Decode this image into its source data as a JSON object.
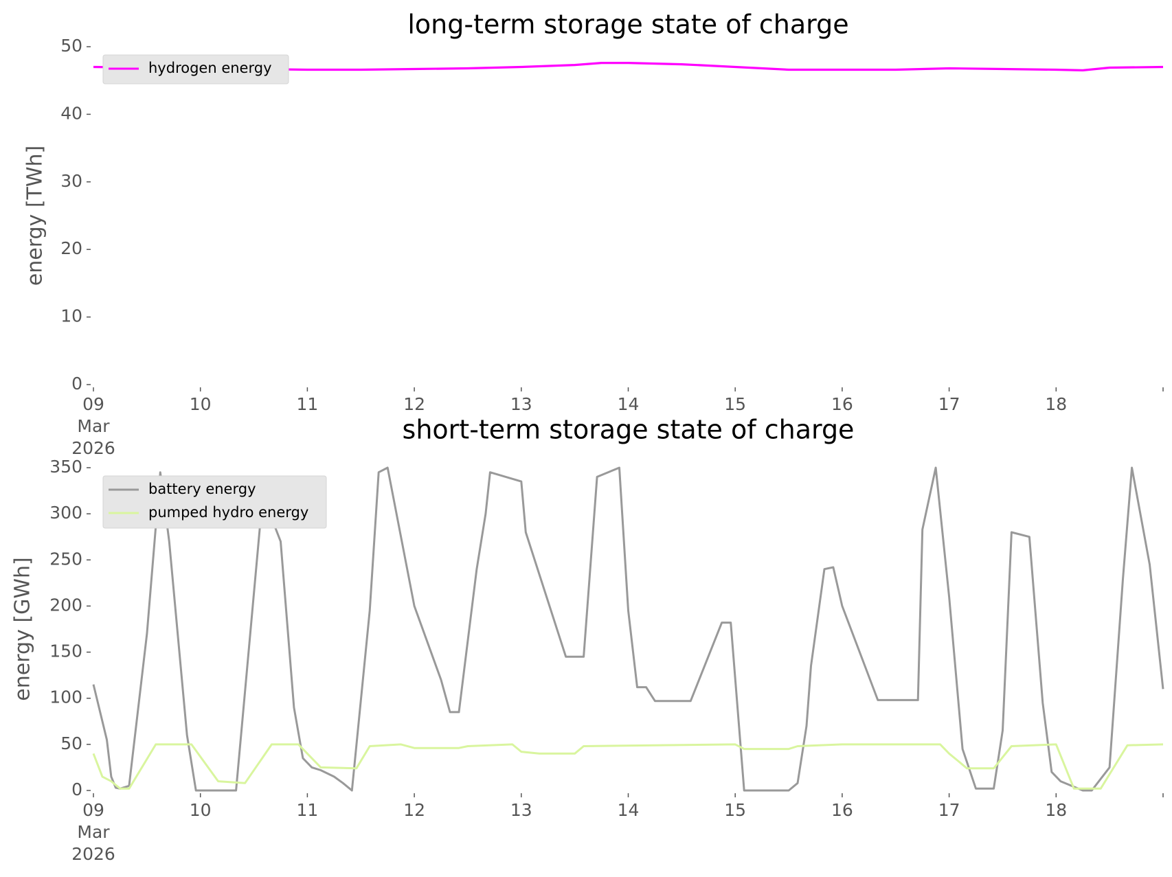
{
  "chart_data": [
    {
      "type": "line",
      "title": "long-term storage state of charge",
      "xlabel": "",
      "ylabel": "energy [TWh]",
      "ylim": [
        0,
        50
      ],
      "yticks": [
        0,
        10,
        20,
        30,
        40,
        50
      ],
      "xlim": [
        "2026-03-09 00:00",
        "2026-03-19 00:00"
      ],
      "xticks": [
        "2026-03-09",
        "2026-03-10",
        "2026-03-11",
        "2026-03-12",
        "2026-03-13",
        "2026-03-14",
        "2026-03-15",
        "2026-03-16",
        "2026-03-17",
        "2026-03-18"
      ],
      "xtick_labels": [
        "09\nMar\n2026",
        "10",
        "11",
        "12",
        "13",
        "14",
        "15",
        "16",
        "17",
        "18"
      ],
      "grid": false,
      "legend_position": "top-left",
      "series": [
        {
          "name": "hydrogen energy",
          "color": "#ff00ff",
          "x": [
            "2026-03-09 00:00",
            "2026-03-10 00:00",
            "2026-03-10 12:00",
            "2026-03-11 00:00",
            "2026-03-11 12:00",
            "2026-03-12 00:00",
            "2026-03-12 12:00",
            "2026-03-13 00:00",
            "2026-03-13 12:00",
            "2026-03-13 18:00",
            "2026-03-14 00:00",
            "2026-03-14 12:00",
            "2026-03-15 00:00",
            "2026-03-15 12:00",
            "2026-03-16 00:00",
            "2026-03-16 12:00",
            "2026-03-17 00:00",
            "2026-03-17 12:00",
            "2026-03-18 00:00",
            "2026-03-18 06:00",
            "2026-03-18 12:00",
            "2026-03-19 00:00"
          ],
          "values": [
            47.0,
            46.8,
            46.7,
            46.6,
            46.6,
            46.7,
            46.8,
            47.0,
            47.3,
            47.6,
            47.6,
            47.4,
            47.0,
            46.6,
            46.6,
            46.6,
            46.8,
            46.7,
            46.6,
            46.5,
            46.9,
            47.0
          ]
        }
      ]
    },
    {
      "type": "line",
      "title": "short-term storage state of charge",
      "xlabel": "",
      "ylabel": "energy [GWh]",
      "ylim": [
        0,
        350
      ],
      "yticks": [
        0,
        50,
        100,
        150,
        200,
        250,
        300,
        350
      ],
      "xlim": [
        "2026-03-09 00:00",
        "2026-03-19 00:00"
      ],
      "xticks": [
        "2026-03-09",
        "2026-03-10",
        "2026-03-11",
        "2026-03-12",
        "2026-03-13",
        "2026-03-14",
        "2026-03-15",
        "2026-03-16",
        "2026-03-17",
        "2026-03-18"
      ],
      "xtick_labels": [
        "09\nMar\n2026",
        "10",
        "11",
        "12",
        "13",
        "14",
        "15",
        "16",
        "17",
        "18"
      ],
      "grid": false,
      "legend_position": "top-left",
      "series": [
        {
          "name": "battery energy",
          "color": "#999999",
          "x": [
            "2026-03-09 00:00",
            "2026-03-09 03:00",
            "2026-03-09 04:00",
            "2026-03-09 05:00",
            "2026-03-09 06:00",
            "2026-03-09 08:00",
            "2026-03-09 12:00",
            "2026-03-09 15:00",
            "2026-03-09 17:00",
            "2026-03-09 21:00",
            "2026-03-09 23:00",
            "2026-03-10 08:00",
            "2026-03-10 14:00",
            "2026-03-10 18:00",
            "2026-03-10 21:00",
            "2026-03-10 23:00",
            "2026-03-11 01:00",
            "2026-03-11 03:00",
            "2026-03-11 06:00",
            "2026-03-11 08:00",
            "2026-03-11 10:00",
            "2026-03-11 14:00",
            "2026-03-11 16:00",
            "2026-03-11 18:00",
            "2026-03-12 00:00",
            "2026-03-12 06:00",
            "2026-03-12 08:00",
            "2026-03-12 10:00",
            "2026-03-12 14:00",
            "2026-03-12 16:00",
            "2026-03-12 17:00",
            "2026-03-13 00:00",
            "2026-03-13 01:00",
            "2026-03-13 10:00",
            "2026-03-13 14:00",
            "2026-03-13 17:00",
            "2026-03-13 22:00",
            "2026-03-14 00:00",
            "2026-03-14 02:00",
            "2026-03-14 04:00",
            "2026-03-14 06:00",
            "2026-03-14 08:00",
            "2026-03-14 14:00",
            "2026-03-14 21:00",
            "2026-03-14 23:00",
            "2026-03-15 02:00",
            "2026-03-15 06:00",
            "2026-03-15 12:00",
            "2026-03-15 14:00",
            "2026-03-15 16:00",
            "2026-03-15 17:00",
            "2026-03-15 20:00",
            "2026-03-15 22:00",
            "2026-03-16 00:00",
            "2026-03-16 08:00",
            "2026-03-16 12:00",
            "2026-03-16 14:00",
            "2026-03-16 17:00",
            "2026-03-16 18:00",
            "2026-03-16 21:00",
            "2026-03-17 00:00",
            "2026-03-17 03:00",
            "2026-03-17 06:00",
            "2026-03-17 10:00",
            "2026-03-17 12:00",
            "2026-03-17 14:00",
            "2026-03-17 18:00",
            "2026-03-17 21:00",
            "2026-03-17 23:00",
            "2026-03-18 01:00",
            "2026-03-18 06:00",
            "2026-03-18 08:00",
            "2026-03-18 12:00",
            "2026-03-18 15:00",
            "2026-03-18 17:00",
            "2026-03-18 21:00",
            "2026-03-19 00:00"
          ],
          "values": [
            115,
            55,
            15,
            3,
            2,
            5,
            170,
            345,
            270,
            60,
            0,
            0,
            320,
            270,
            90,
            35,
            25,
            22,
            15,
            8,
            0,
            195,
            345,
            350,
            200,
            120,
            85,
            85,
            240,
            300,
            345,
            335,
            280,
            145,
            145,
            340,
            350,
            195,
            112,
            112,
            97,
            97,
            97,
            182,
            182,
            0,
            0,
            0,
            8,
            70,
            135,
            240,
            242,
            200,
            98,
            98,
            98,
            98,
            283,
            350,
            210,
            45,
            2,
            2,
            65,
            280,
            275,
            95,
            20,
            10,
            0,
            0,
            25,
            230,
            350,
            245,
            110
          ]
        },
        {
          "name": "pumped hydro energy",
          "color": "#d9f59e",
          "x": [
            "2026-03-09 00:00",
            "2026-03-09 02:00",
            "2026-03-09 04:00",
            "2026-03-09 06:00",
            "2026-03-09 08:00",
            "2026-03-09 14:00",
            "2026-03-09 22:00",
            "2026-03-10 04:00",
            "2026-03-10 10:00",
            "2026-03-10 16:00",
            "2026-03-10 22:00",
            "2026-03-11 03:00",
            "2026-03-11 11:00",
            "2026-03-11 14:00",
            "2026-03-11 21:00",
            "2026-03-12 00:00",
            "2026-03-12 10:00",
            "2026-03-12 12:00",
            "2026-03-12 22:00",
            "2026-03-13 00:00",
            "2026-03-13 04:00",
            "2026-03-13 12:00",
            "2026-03-13 14:00",
            "2026-03-15 00:00",
            "2026-03-15 02:00",
            "2026-03-15 12:00",
            "2026-03-15 14:00",
            "2026-03-16 00:00",
            "2026-03-16 22:00",
            "2026-03-17 00:00",
            "2026-03-17 02:00",
            "2026-03-17 04:00",
            "2026-03-17 10:00",
            "2026-03-17 14:00",
            "2026-03-18 00:00",
            "2026-03-18 04:00",
            "2026-03-18 10:00",
            "2026-03-18 16:00",
            "2026-03-19 00:00"
          ],
          "values": [
            40,
            15,
            10,
            2,
            2,
            50,
            50,
            10,
            8,
            50,
            50,
            25,
            24,
            48,
            50,
            46,
            46,
            48,
            50,
            42,
            40,
            40,
            48,
            50,
            45,
            45,
            48,
            50,
            50,
            40,
            32,
            24,
            24,
            48,
            50,
            2,
            2,
            49,
            50
          ]
        }
      ]
    }
  ]
}
